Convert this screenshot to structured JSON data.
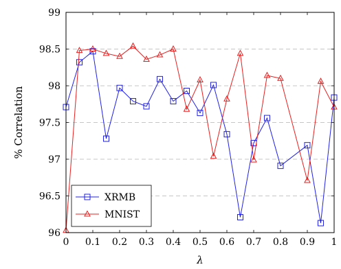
{
  "chart_data": {
    "type": "line",
    "xlabel": "λ",
    "ylabel": "% Correlation",
    "xlim": [
      0,
      1
    ],
    "ylim": [
      96,
      99
    ],
    "xticks": [
      0,
      0.1,
      0.2,
      0.3,
      0.4,
      0.5,
      0.6,
      0.7,
      0.8,
      0.9,
      1
    ],
    "xtick_labels": [
      "0",
      "0.1",
      "0.2",
      "0.3",
      "0.4",
      "0.5",
      "0.6",
      "0.7",
      "0.8",
      "0.9",
      "1"
    ],
    "yticks": [
      96,
      96.5,
      97,
      97.5,
      98,
      98.5,
      99
    ],
    "ytick_labels": [
      "96",
      "96.5",
      "97",
      "97.5",
      "98",
      "98.5",
      "99"
    ],
    "grid": "horizontal dashed",
    "legend_position": "bottom-left",
    "series": [
      {
        "name": "XRMB",
        "color": "#1f1fe6",
        "marker": "square",
        "x": [
          0,
          0.05,
          0.1,
          0.15,
          0.2,
          0.25,
          0.3,
          0.35,
          0.4,
          0.45,
          0.5,
          0.55,
          0.6,
          0.65,
          0.7,
          0.75,
          0.8,
          0.9,
          0.95,
          1
        ],
        "y": [
          97.71,
          98.32,
          98.47,
          97.28,
          97.97,
          97.79,
          97.72,
          98.09,
          97.79,
          97.93,
          97.63,
          98.01,
          97.34,
          96.21,
          97.22,
          97.56,
          96.91,
          97.19,
          96.13,
          97.84
        ]
      },
      {
        "name": "MNIST",
        "color": "#e61f1f",
        "marker": "triangle",
        "x": [
          0,
          0.05,
          0.1,
          0.15,
          0.2,
          0.25,
          0.3,
          0.35,
          0.4,
          0.45,
          0.5,
          0.55,
          0.6,
          0.65,
          0.7,
          0.75,
          0.8,
          0.9,
          0.95,
          1
        ],
        "y": [
          96.03,
          98.48,
          98.5,
          98.44,
          98.4,
          98.54,
          98.36,
          98.42,
          98.5,
          97.68,
          98.08,
          97.04,
          97.82,
          98.44,
          96.99,
          98.14,
          98.1,
          96.71,
          98.06,
          97.71
        ]
      }
    ]
  }
}
